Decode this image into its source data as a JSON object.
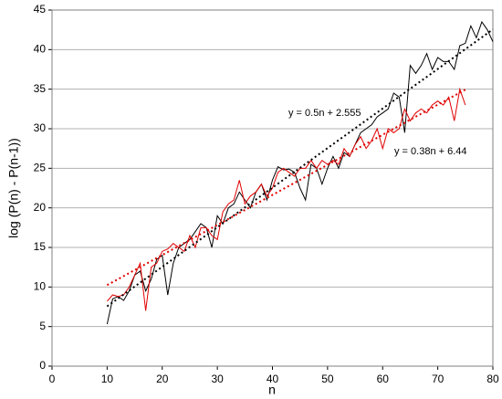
{
  "chart_data": {
    "type": "line",
    "x_label": "n",
    "y_label": "log (P(n) - P(n-1))",
    "xlim": [
      0,
      80
    ],
    "xticks": [
      0,
      10,
      20,
      30,
      40,
      50,
      60,
      70,
      80
    ],
    "ylim": [
      0,
      45
    ],
    "yticks": [
      0,
      5,
      10,
      15,
      20,
      25,
      30,
      35,
      40,
      45
    ],
    "grid": true,
    "series": [
      {
        "color": "#000000",
        "x": [
          10,
          11,
          12,
          13,
          14,
          15,
          16,
          17,
          18,
          19,
          20,
          21,
          22,
          23,
          24,
          25,
          26,
          27,
          28,
          29,
          30,
          31,
          32,
          33,
          34,
          35,
          36,
          37,
          38,
          39,
          40,
          41,
          42,
          43,
          44,
          45,
          46,
          47,
          48,
          49,
          50,
          51,
          52,
          53,
          54,
          55,
          56,
          57,
          58,
          59,
          60,
          61,
          62,
          63,
          64,
          65,
          66,
          67,
          68,
          69,
          70,
          71,
          72,
          73,
          74,
          75,
          76,
          77,
          78,
          79,
          80
        ],
        "values": [
          5.3,
          8.5,
          8.8,
          8.3,
          9.5,
          11.5,
          12,
          9.5,
          11,
          13.5,
          14,
          9,
          13,
          15,
          15.5,
          16,
          17,
          18,
          17.5,
          15,
          19,
          18,
          20,
          20.5,
          22,
          21,
          20,
          22,
          23,
          21,
          23.5,
          25.2,
          24.8,
          24.9,
          24.5,
          22.5,
          21,
          25.5,
          25,
          23,
          25,
          26.5,
          25,
          27,
          26.5,
          28,
          29.5,
          30,
          30.5,
          31.5,
          32,
          32.5,
          34.5,
          34,
          29.5,
          38,
          37,
          38,
          39.5,
          37.5,
          39,
          38.5,
          38.5,
          37.5,
          40.5,
          40.8,
          43,
          41.5,
          43.5,
          42.5,
          41
        ]
      },
      {
        "color": "#e00000",
        "x": [
          10,
          11,
          12,
          13,
          14,
          15,
          16,
          17,
          18,
          19,
          20,
          21,
          22,
          23,
          24,
          25,
          26,
          27,
          28,
          29,
          30,
          31,
          32,
          33,
          34,
          35,
          36,
          37,
          38,
          39,
          40,
          41,
          42,
          43,
          44,
          45,
          46,
          47,
          48,
          49,
          50,
          51,
          52,
          53,
          54,
          55,
          56,
          57,
          58,
          59,
          60,
          61,
          62,
          63,
          64,
          65,
          66,
          67,
          68,
          69,
          70,
          71,
          72,
          73,
          74,
          75
        ],
        "values": [
          8.2,
          9,
          8.8,
          9,
          10,
          11.5,
          13,
          7,
          12.5,
          13,
          14.5,
          14.8,
          15.5,
          15,
          14.5,
          16.5,
          15,
          17.5,
          17.5,
          16.5,
          16,
          19.5,
          20.5,
          21,
          23.5,
          20.5,
          21.5,
          22,
          23,
          21.5,
          22.5,
          24.5,
          25,
          24.5,
          24,
          25,
          25,
          26,
          25,
          26,
          25.5,
          26,
          25.5,
          27.5,
          26.5,
          28,
          29,
          27.5,
          28.5,
          30,
          27.5,
          30,
          29.5,
          30,
          32.5,
          31,
          32,
          32.5,
          32,
          33,
          33.5,
          33,
          34,
          31,
          35,
          33
        ]
      }
    ],
    "trendlines": [
      {
        "label": "y = 0.5n + 2.555",
        "color": "#000000",
        "x": [
          10,
          80
        ],
        "values": [
          7.555,
          42.555
        ]
      },
      {
        "label": "y = 0.38n + 6.44",
        "color": "#e00000",
        "x": [
          10,
          75
        ],
        "values": [
          10.24,
          34.94
        ]
      }
    ]
  }
}
